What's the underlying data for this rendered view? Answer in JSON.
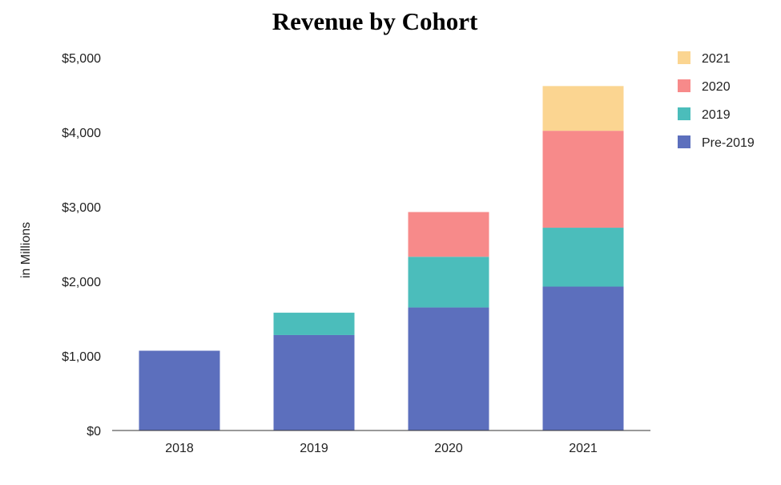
{
  "chart_data": {
    "type": "bar",
    "stacked": true,
    "title": "Revenue by Cohort",
    "xlabel": "",
    "ylabel": "in Millions",
    "categories": [
      "2018",
      "2019",
      "2020",
      "2021"
    ],
    "ylim": [
      0,
      5000
    ],
    "yticks": [
      0,
      1000,
      2000,
      3000,
      4000,
      5000
    ],
    "ytick_labels": [
      "$0",
      "$1,000",
      "$2,000",
      "$3,000",
      "$4,000",
      "$5,000"
    ],
    "grid": false,
    "legend_position": "right",
    "series": [
      {
        "name": "Pre-2019",
        "color": "#5c6fbd",
        "values": [
          1070,
          1280,
          1650,
          1930
        ]
      },
      {
        "name": "2019",
        "color": "#4bbdbb",
        "values": [
          0,
          300,
          680,
          790
        ]
      },
      {
        "name": "2020",
        "color": "#f78a8a",
        "values": [
          0,
          0,
          600,
          1300
        ]
      },
      {
        "name": "2021",
        "color": "#fbd591",
        "values": [
          0,
          0,
          0,
          600
        ]
      }
    ],
    "legend_order": [
      "2021",
      "2020",
      "2019",
      "Pre-2019"
    ]
  }
}
